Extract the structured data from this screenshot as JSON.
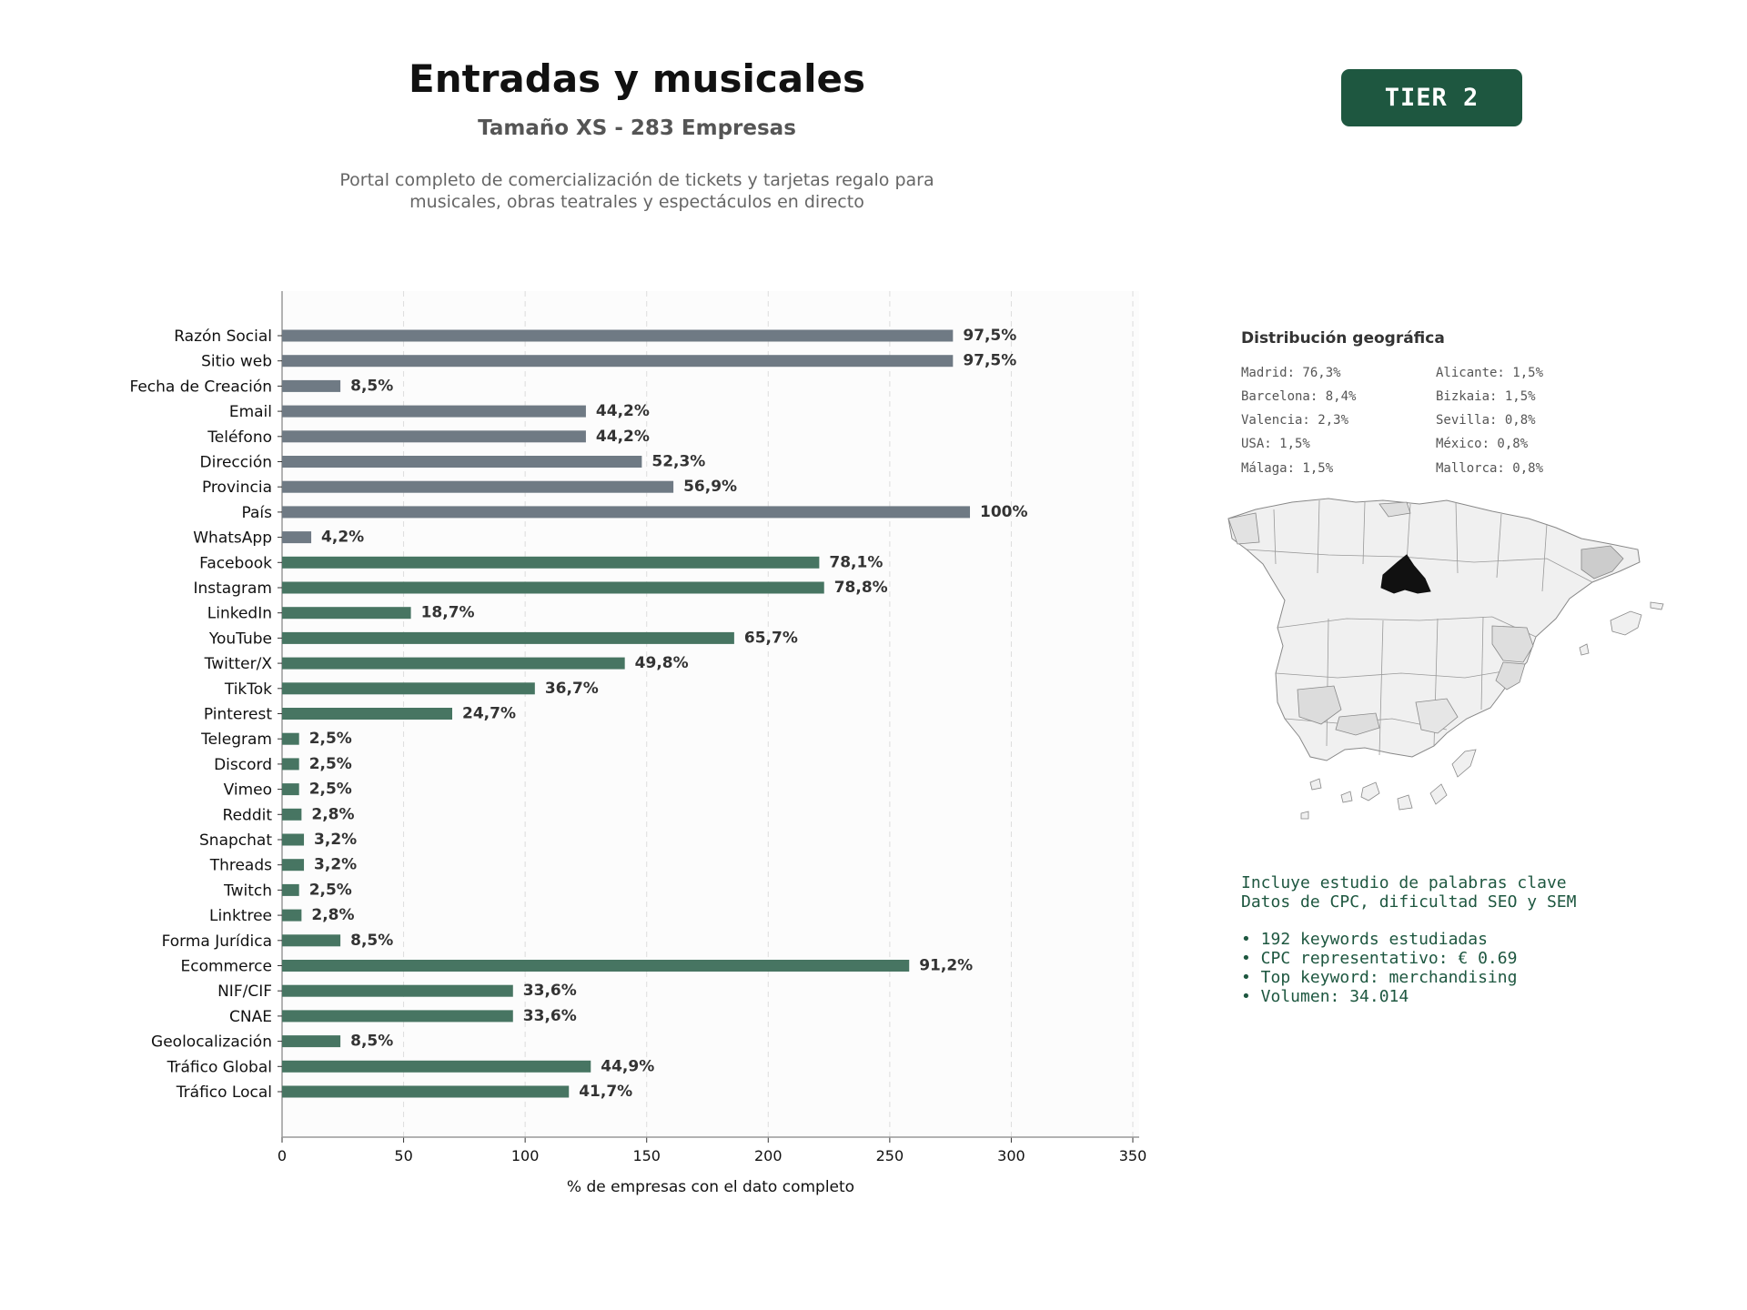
{
  "header": {
    "title": "Entradas y musicales",
    "subtitle": "Tamaño XS - 283 Empresas",
    "description_line1": "Portal completo de comercialización de tickets y tarjetas regalo para",
    "description_line2": "musicales, obras teatrales y espectáculos en directo",
    "tier": "TIER 2",
    "tier_color": "#1e5740"
  },
  "chart_data": {
    "type": "bar",
    "orientation": "horizontal",
    "xlabel": "% de empresas con el dato completo",
    "xlim": [
      0,
      350
    ],
    "xticks": [
      0,
      50,
      100,
      150,
      200,
      250,
      300,
      350
    ],
    "grid": "vertical dashed",
    "colors": {
      "gray": "#6f7a84",
      "green": "#477562"
    },
    "categories": [
      "Razón Social",
      "Sitio web",
      "Fecha de Creación",
      "Email",
      "Teléfono",
      "Dirección",
      "Provincia",
      "País",
      "WhatsApp",
      "Facebook",
      "Instagram",
      "LinkedIn",
      "YouTube",
      "Twitter/X",
      "TikTok",
      "Pinterest",
      "Telegram",
      "Discord",
      "Vimeo",
      "Reddit",
      "Snapchat",
      "Threads",
      "Twitch",
      "Linktree",
      "Forma Jurídica",
      "Ecommerce",
      "NIF/CIF",
      "CNAE",
      "Geolocalización",
      "Tráfico Global",
      "Tráfico Local"
    ],
    "values": [
      276,
      276,
      24,
      125,
      125,
      148,
      161,
      283,
      12,
      221,
      223,
      53,
      186,
      141,
      104,
      70,
      7,
      7,
      7,
      8,
      9,
      9,
      7,
      8,
      24,
      258,
      95,
      95,
      24,
      127,
      118
    ],
    "labels": [
      "97,5%",
      "97,5%",
      "8,5%",
      "44,2%",
      "44,2%",
      "52,3%",
      "56,9%",
      "100%",
      "4,2%",
      "78,1%",
      "78,8%",
      "18,7%",
      "65,7%",
      "49,8%",
      "36,7%",
      "24,7%",
      "2,5%",
      "2,5%",
      "2,5%",
      "2,8%",
      "3,2%",
      "3,2%",
      "2,5%",
      "2,8%",
      "8,5%",
      "91,2%",
      "33,6%",
      "33,6%",
      "8,5%",
      "44,9%",
      "41,7%"
    ],
    "color_group": [
      "gray",
      "gray",
      "gray",
      "gray",
      "gray",
      "gray",
      "gray",
      "gray",
      "gray",
      "green",
      "green",
      "green",
      "green",
      "green",
      "green",
      "green",
      "green",
      "green",
      "green",
      "green",
      "green",
      "green",
      "green",
      "green",
      "green",
      "green",
      "green",
      "green",
      "green",
      "green",
      "green"
    ]
  },
  "geo": {
    "title": "Distribución geográfica",
    "left": [
      "Madrid: 76,3%",
      "Barcelona: 8,4%",
      "Valencia: 2,3%",
      "USA: 1,5%",
      "Málaga: 1,5%"
    ],
    "right": [
      "Alicante: 1,5%",
      "Bizkaia: 1,5%",
      "Sevilla: 0,8%",
      "México: 0,8%",
      "Mallorca: 0,8%"
    ],
    "map_colors": {
      "madrid": "#111111",
      "high": "#cccccc",
      "mid": "#dedede",
      "base": "#f0f0f0",
      "border": "#888888"
    }
  },
  "keywords": {
    "line1": "Incluye estudio de palabras clave",
    "line2": "Datos de CPC, dificultad SEO y SEM",
    "bullets": [
      "• 192 keywords estudiadas",
      "• CPC representativo: € 0.69",
      "• Top keyword: merchandising",
      "• Volumen: 34.014"
    ]
  }
}
